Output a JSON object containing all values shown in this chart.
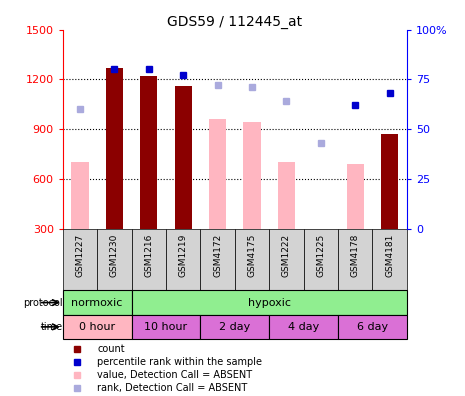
{
  "title": "GDS59 / 112445_at",
  "samples": [
    "GSM1227",
    "GSM1230",
    "GSM1216",
    "GSM1219",
    "GSM4172",
    "GSM4175",
    "GSM1222",
    "GSM1225",
    "GSM4178",
    "GSM4181"
  ],
  "count_values": [
    null,
    1270,
    1220,
    1160,
    null,
    null,
    null,
    null,
    null,
    870
  ],
  "count_absent": [
    700,
    null,
    null,
    null,
    960,
    940,
    700,
    null,
    690,
    null
  ],
  "rank_values": [
    null,
    80,
    80,
    77,
    null,
    null,
    null,
    null,
    62,
    68
  ],
  "rank_absent": [
    60,
    null,
    null,
    null,
    72,
    71,
    64,
    43,
    null,
    null
  ],
  "ylim_left": [
    300,
    1500
  ],
  "ylim_right": [
    0,
    100
  ],
  "yticks_left": [
    300,
    600,
    900,
    1200,
    1500
  ],
  "yticks_right": [
    0,
    25,
    50,
    75,
    100
  ],
  "bar_width": 0.5,
  "color_count": "#8B0000",
  "color_count_absent": "#FFB6C1",
  "color_rank": "#0000CD",
  "color_rank_absent": "#AAAADD",
  "normoxic_color": "#90EE90",
  "hypoxic_color": "#90EE90",
  "time_0h_color": "#FFB6C1",
  "time_rest_color": "#DA70D6",
  "sample_box_color": "#D3D3D3",
  "protocol_spans": [
    [
      0,
      2,
      "normoxic"
    ],
    [
      2,
      10,
      "hypoxic"
    ]
  ],
  "time_spans": [
    [
      0,
      2,
      "0 hour"
    ],
    [
      2,
      4,
      "10 hour"
    ],
    [
      4,
      6,
      "2 day"
    ],
    [
      6,
      8,
      "4 day"
    ],
    [
      8,
      10,
      "6 day"
    ]
  ],
  "legend_items": [
    [
      "#8B0000",
      "count"
    ],
    [
      "#0000CD",
      "percentile rank within the sample"
    ],
    [
      "#FFB6C1",
      "value, Detection Call = ABSENT"
    ],
    [
      "#AAAADD",
      "rank, Detection Call = ABSENT"
    ]
  ]
}
